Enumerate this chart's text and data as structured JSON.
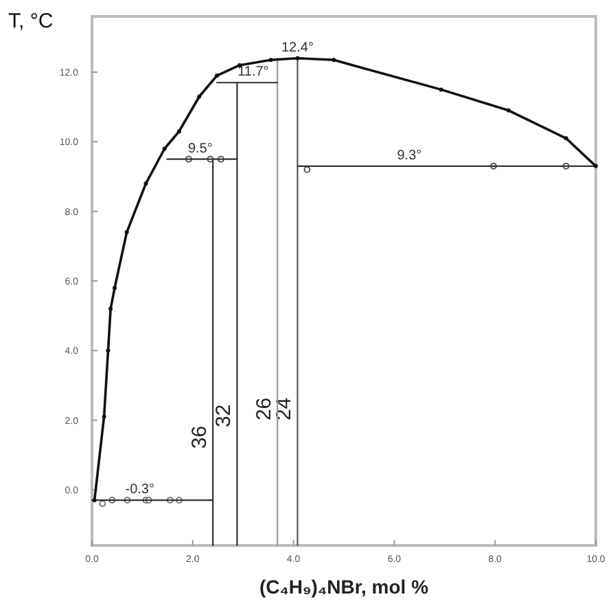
{
  "chart_data": {
    "type": "line",
    "ylabel": "T, °C",
    "xlabel": "(C₄H₉)₄NBr, mol %",
    "xlim": [
      0,
      10
    ],
    "ylim": [
      -1.6,
      13.6
    ],
    "xticks": [
      {
        "value": 0,
        "label": "0.0"
      },
      {
        "value": 2,
        "label": "2.0"
      },
      {
        "value": 4,
        "label": "4.0"
      },
      {
        "value": 6,
        "label": "6.0"
      },
      {
        "value": 8,
        "label": "8.0"
      },
      {
        "value": 10,
        "label": "10.0"
      }
    ],
    "yticks": [
      {
        "value": 0,
        "label": "0.0"
      },
      {
        "value": 2,
        "label": "2.0"
      },
      {
        "value": 4,
        "label": "4.0"
      },
      {
        "value": 6,
        "label": "6.0"
      },
      {
        "value": 8,
        "label": "8.0"
      },
      {
        "value": 10,
        "label": "10.0"
      },
      {
        "value": 12,
        "label": "12.0"
      }
    ],
    "grid": false,
    "line_style": "solid",
    "series": [
      {
        "color": "#111111",
        "marker": "circle",
        "x": [
          0.05,
          0.24,
          0.32,
          0.37,
          0.45,
          0.69,
          1.07,
          1.44,
          1.73,
          2.13,
          2.48,
          2.93,
          3.55,
          4.08,
          4.8,
          6.93,
          8.27,
          9.41,
          10
        ],
        "values": [
          -0.3,
          2.1,
          4.0,
          5.2,
          5.8,
          7.4,
          8.8,
          9.8,
          10.3,
          11.3,
          11.9,
          12.2,
          12.35,
          12.4,
          12.35,
          11.5,
          10.9,
          10.1,
          9.3
        ]
      },
      {
        "type": "line",
        "color": "#333333",
        "marker": "none",
        "x": [
          0,
          2.4
        ],
        "values": [
          -0.3,
          -0.3
        ]
      },
      {
        "type": "line",
        "color": "#333333",
        "marker": "none",
        "x": [
          1.49,
          2.88
        ],
        "values": [
          9.5,
          9.5
        ]
      },
      {
        "type": "line",
        "color": "#333333",
        "marker": "none",
        "x": [
          2.48,
          3.68
        ],
        "values": [
          11.7,
          11.7
        ]
      },
      {
        "type": "line",
        "color": "#333333",
        "marker": "none",
        "x": [
          4.08,
          10
        ],
        "values": [
          9.3,
          9.3
        ]
      },
      {
        "type": "line",
        "name": "36",
        "color": "#333333",
        "marker": "none",
        "x": [
          2.4,
          2.4
        ],
        "values": [
          -1.6,
          9.5
        ]
      },
      {
        "type": "line",
        "name": "32",
        "color": "#333333",
        "marker": "none",
        "x": [
          2.88,
          2.88
        ],
        "values": [
          -1.6,
          11.7
        ]
      },
      {
        "type": "line",
        "name": "26",
        "color": "#999999",
        "marker": "none",
        "x": [
          3.68,
          3.68
        ],
        "values": [
          -1.6,
          12.4
        ]
      },
      {
        "type": "line",
        "name": "24",
        "color": "#555555",
        "marker": "none",
        "x": [
          4.08,
          4.08
        ],
        "values": [
          -1.6,
          12.4
        ]
      },
      {
        "type": "scatter",
        "color": "#666666",
        "marker": "circle",
        "x": [
          0.21,
          0.4,
          0.7,
          1.07,
          1.13,
          1.55,
          1.73
        ],
        "values": [
          -0.4,
          -0.3,
          -0.3,
          -0.3,
          -0.3,
          -0.3,
          -0.3
        ]
      },
      {
        "type": "scatter",
        "color": "#444444",
        "marker": "circle",
        "x": [
          1.92,
          2.35,
          2.56,
          4.27,
          7.97,
          9.41
        ],
        "values": [
          9.5,
          9.5,
          9.5,
          9.2,
          9.3,
          9.3
        ]
      }
    ],
    "annotations": [
      {
        "text": "12.4°",
        "x": 4.08,
        "y": 12.4
      },
      {
        "text": "11.7°",
        "x": 3.2,
        "y": 11.7
      },
      {
        "text": "9.5°",
        "x": 2.15,
        "y": 9.5
      },
      {
        "text": "9.3°",
        "x": 6.3,
        "y": 9.3
      },
      {
        "text": "-0.3°",
        "x": 0.95,
        "y": -0.3
      }
    ]
  }
}
